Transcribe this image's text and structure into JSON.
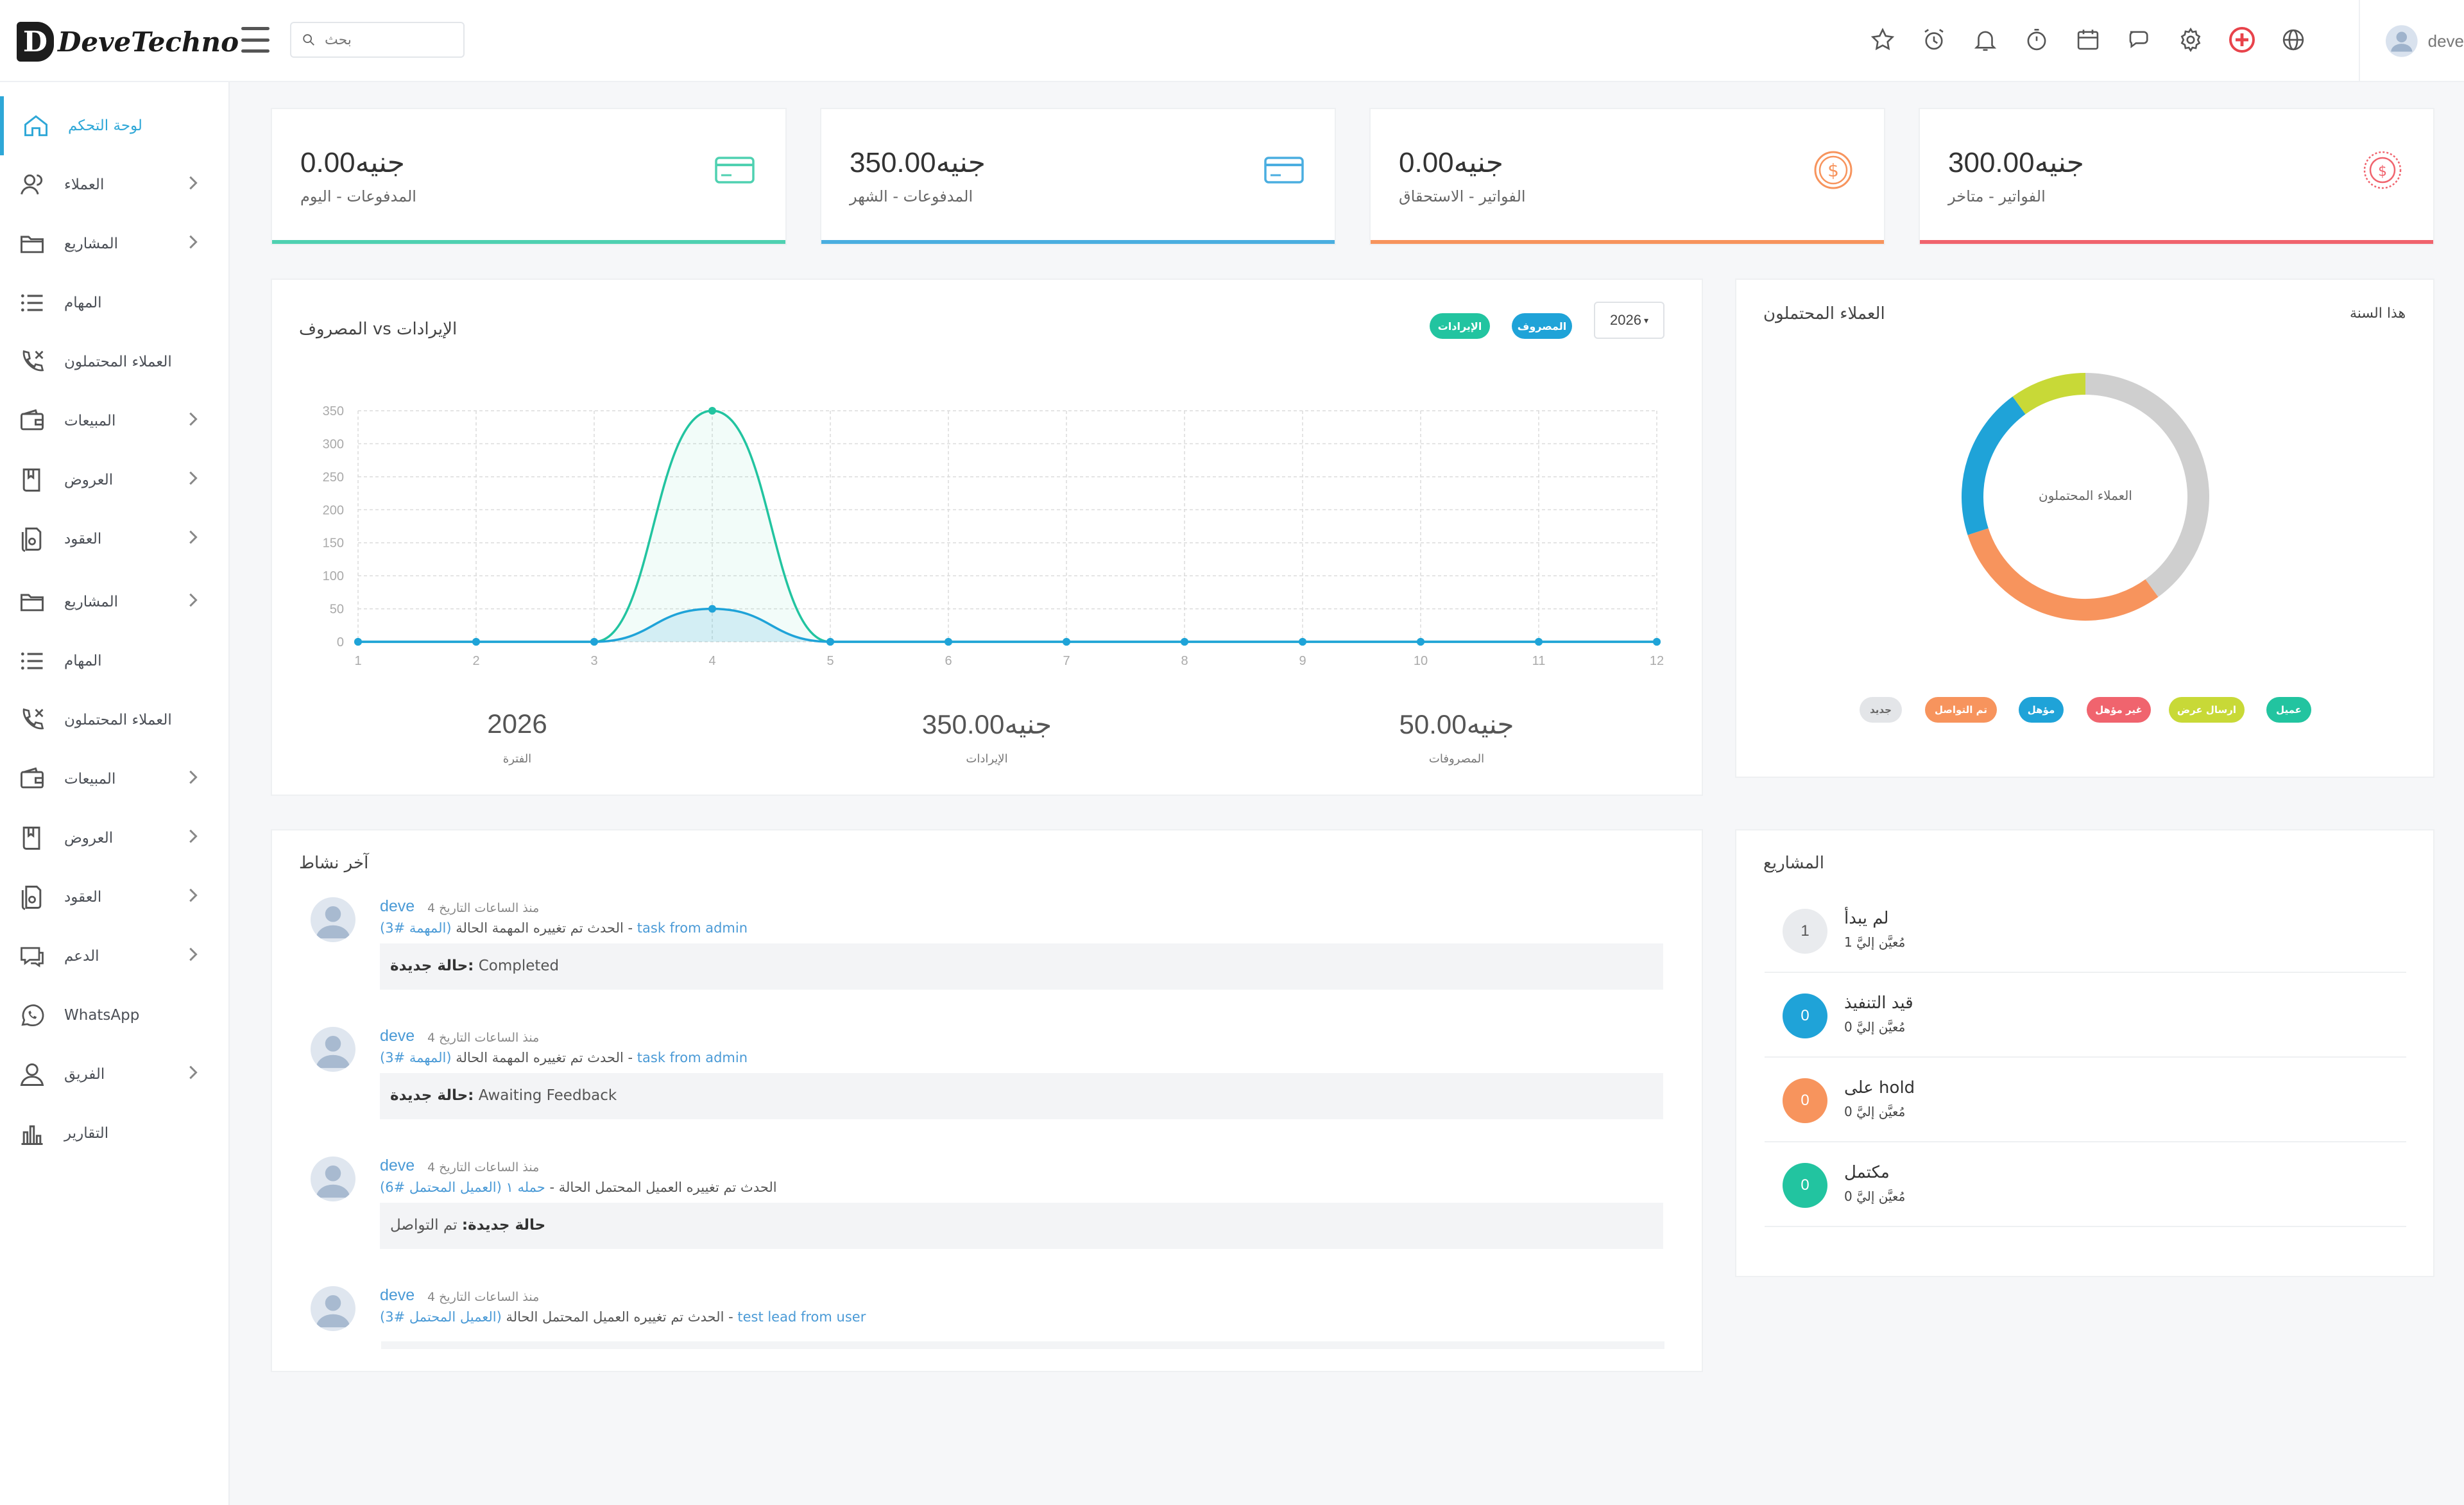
{
  "app": {
    "logo_letter": "D",
    "logo_text": "DeveTechno",
    "user": "deve"
  },
  "search": {
    "placeholder": "بحث"
  },
  "sidebar": [
    {
      "label": "لوحة التحكم",
      "icon": "home-icon",
      "active": true,
      "chevron": false
    },
    {
      "label": "العملاء",
      "icon": "users-icon",
      "chevron": true
    },
    {
      "label": "المشاريع",
      "icon": "folder-icon",
      "chevron": true
    },
    {
      "label": "المهام",
      "icon": "list-icon",
      "chevron": false
    },
    {
      "label": "العملاء المحتملون",
      "icon": "phone-icon",
      "chevron": false
    },
    {
      "label": "المبيعات",
      "icon": "wallet-icon",
      "chevron": true
    },
    {
      "label": "العروض",
      "icon": "book-icon",
      "chevron": true
    },
    {
      "label": "العقود",
      "icon": "contract-icon",
      "chevron": true
    },
    {
      "label": "المشاريع",
      "icon": "folder-icon",
      "chevron": true
    },
    {
      "label": "المهام",
      "icon": "list-icon",
      "chevron": false
    },
    {
      "label": "العملاء المحتملون",
      "icon": "phone-icon",
      "chevron": false
    },
    {
      "label": "المبيعات",
      "icon": "wallet-icon",
      "chevron": true
    },
    {
      "label": "العروض",
      "icon": "book-icon",
      "chevron": true
    },
    {
      "label": "العقود",
      "icon": "contract-icon",
      "chevron": true
    },
    {
      "label": "الدعم",
      "icon": "support-icon",
      "chevron": true
    },
    {
      "label": "WhatsApp",
      "icon": "whatsapp-icon",
      "chevron": false
    },
    {
      "label": "الفريق",
      "icon": "team-icon",
      "chevron": true
    },
    {
      "label": "التقارير",
      "icon": "reports-icon",
      "chevron": false
    }
  ],
  "stats": [
    {
      "amount": "0.00جنيه",
      "label": "المدفوعات - اليوم",
      "color": "#4fd1b1",
      "icon": "card-icon"
    },
    {
      "amount": "350.00جنيه",
      "label": "المدفوعات - الشهر",
      "color": "#4aaee0",
      "icon": "card-icon"
    },
    {
      "amount": "0.00جنيه",
      "label": "الفواتير - الاستحقاق",
      "color": "#f7945d",
      "icon": "coin-icon"
    },
    {
      "amount": "300.00جنيه",
      "label": "الفواتير - متاخر",
      "color": "#f0646e",
      "icon": "overdue-icon"
    }
  ],
  "revenue": {
    "title": "المصروف vs الإيرادات",
    "pill_revenue": "الإيرادات",
    "pill_expense": "المصروف",
    "year": "2026",
    "summary": [
      {
        "value": "2026",
        "label": "الفترة"
      },
      {
        "value": "350.00جنيه",
        "label": "الإيرادات"
      },
      {
        "value": "50.00جنيه",
        "label": "المصروفات"
      }
    ]
  },
  "chart_data": {
    "type": "area",
    "x": [
      1,
      2,
      3,
      4,
      5,
      6,
      7,
      8,
      9,
      10,
      11,
      12
    ],
    "yticks": [
      0,
      50,
      100,
      150,
      200,
      250,
      300,
      350
    ],
    "ylim": [
      0,
      350
    ],
    "series": [
      {
        "name": "الإيرادات",
        "color": "#22c4a0",
        "values": [
          0,
          0,
          0,
          350,
          0,
          0,
          0,
          0,
          0,
          0,
          0,
          0
        ]
      },
      {
        "name": "المصروف",
        "color": "#1fa3d8",
        "values": [
          0,
          0,
          0,
          50,
          0,
          0,
          0,
          0,
          0,
          0,
          0,
          0
        ]
      }
    ],
    "grid": true
  },
  "leads": {
    "title": "العملاء المحتملون",
    "period": "هذا السنة",
    "center_label": "العملاء المحتملون",
    "legend": [
      {
        "label": "عميل",
        "color": "#22c4a0"
      },
      {
        "label": "ارسال عرض",
        "color": "#c8d937"
      },
      {
        "label": "غير مؤهل",
        "color": "#f0646e"
      },
      {
        "label": "مؤهل",
        "color": "#1fa3d8"
      },
      {
        "label": "تم التواصل",
        "color": "#f7945d"
      },
      {
        "label": "جديد",
        "color": "#e3e5e8"
      }
    ],
    "donut": [
      {
        "label": "جديد",
        "value": 40,
        "color": "#cfcfcf"
      },
      {
        "label": "تم التواصل",
        "value": 30,
        "color": "#f7945d"
      },
      {
        "label": "مؤهل",
        "value": 20,
        "color": "#1fa3d8"
      },
      {
        "label": "ارسال عرض",
        "value": 10,
        "color": "#c8d937"
      }
    ]
  },
  "activity": {
    "title": "آخر نشاط",
    "items": [
      {
        "user": "deve",
        "time": "4 منذ الساعات التاريخ",
        "desc": "الحدث تم تغييره المهمة الحالة",
        "link": "(المهمة #3)",
        "ref": "task from admin",
        "box_label": "حالة جديدة:",
        "box_value": "Completed"
      },
      {
        "user": "deve",
        "time": "4 منذ الساعات التاريخ",
        "desc": "الحدث تم تغييره المهمة الحالة",
        "link": "(المهمة #3)",
        "ref": "task from admin",
        "box_label": "حالة جديدة:",
        "box_value": "Awaiting Feedback"
      },
      {
        "user": "deve",
        "time": "4 منذ الساعات التاريخ",
        "desc": "الحدث تم تغييره العميل المحتمل الحالة",
        "link": "(العميل المحتمل #6)",
        "ref": "حمله ١",
        "box_label": "حالة جديدة:",
        "box_value": "تم التواصل"
      },
      {
        "user": "deve",
        "time": "4 منذ الساعات التاريخ",
        "desc": "الحدث تم تغييره العميل المحتمل الحالة",
        "link": "(العميل المحتمل #3)",
        "ref": "test lead from user",
        "box_label": "",
        "box_value": ""
      }
    ]
  },
  "projects": {
    "title": "المشاريع",
    "items": [
      {
        "name": "لم يبدأ",
        "meta": "مُعيَّن إليَّ 1",
        "count": "1",
        "color": "#e9ebee",
        "text_color": "#555"
      },
      {
        "name": "قيد التنفيذ",
        "meta": "مُعيَّن إليَّ 0",
        "count": "0",
        "color": "#1fa3d8",
        "text_color": "#fff"
      },
      {
        "name": "على hold",
        "meta": "مُعيَّن إليَّ 0",
        "count": "0",
        "color": "#f7945d",
        "text_color": "#fff"
      },
      {
        "name": "مكتمل",
        "meta": "مُعيَّن إليَّ 0",
        "count": "0",
        "color": "#22c4a0",
        "text_color": "#fff"
      }
    ]
  }
}
